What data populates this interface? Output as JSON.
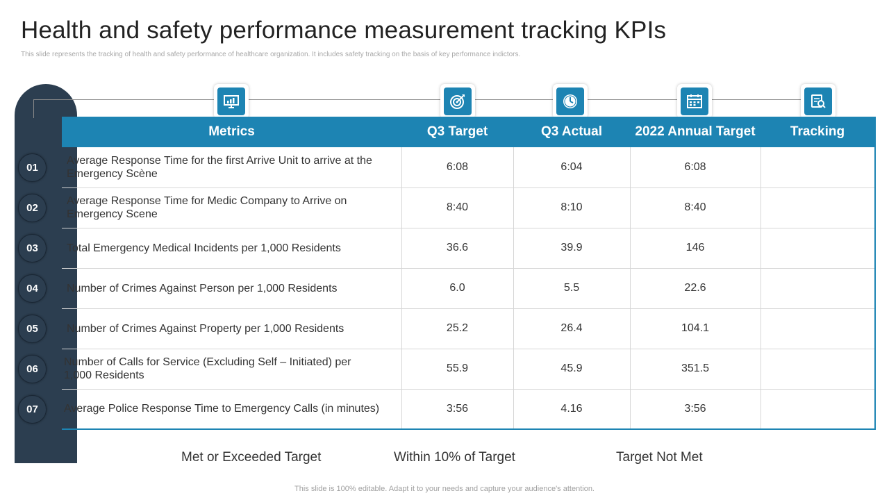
{
  "title": "Health and safety performance measurement tracking KPIs",
  "subtitle": "This slide represents the tracking of health and safety performance of healthcare organization. It includes safety tracking on the basis of key performance indictors.",
  "headers": [
    "Metrics",
    "Q3 Target",
    "Q3 Actual",
    "2022 Annual Target",
    "Tracking"
  ],
  "header_icons": [
    "presentation-icon",
    "target-icon",
    "clock-icon",
    "calendar-icon",
    "tracking-icon"
  ],
  "rows": [
    {
      "num": "01",
      "metric": "Average Response Time for the first Arrive Unit to arrive at the Emergency Scène",
      "q3_target": "6:08",
      "q3_actual": "6:04",
      "annual_target": "6:08",
      "tracking": ""
    },
    {
      "num": "02",
      "metric": "Average Response Time for Medic Company to Arrive on Emergency Scene",
      "q3_target": "8:40",
      "q3_actual": "8:10",
      "annual_target": "8:40",
      "tracking": ""
    },
    {
      "num": "03",
      "metric": "Total Emergency Medical Incidents per 1,000 Residents",
      "q3_target": "36.6",
      "q3_actual": "39.9",
      "annual_target": "146",
      "tracking": ""
    },
    {
      "num": "04",
      "metric": "Number of Crimes Against Person per 1,000 Residents",
      "q3_target": "6.0",
      "q3_actual": "5.5",
      "annual_target": "22.6",
      "tracking": ""
    },
    {
      "num": "05",
      "metric": "Number of Crimes Against Property per 1,000 Residents",
      "q3_target": "25.2",
      "q3_actual": "26.4",
      "annual_target": "104.1",
      "tracking": ""
    },
    {
      "num": "06",
      "metric": "Number of Calls for Service (Excluding Self – Initiated) per 1,000 Residents",
      "q3_target": "55.9",
      "q3_actual": "45.9",
      "annual_target": "351.5",
      "tracking": ""
    },
    {
      "num": "07",
      "metric": "Average Police Response Time to Emergency Calls (in minutes)",
      "q3_target": "3:56",
      "q3_actual": "4.16",
      "annual_target": "3:56",
      "tracking": ""
    }
  ],
  "legend": [
    "Met or Exceeded Target",
    "Within 10% of Target",
    "Target Not Met"
  ],
  "footer": "This slide is 100% editable. Adapt it to your needs and capture your audience's attention.",
  "colors": {
    "accent": "#1d84b3",
    "dark": "#2c3e50"
  }
}
